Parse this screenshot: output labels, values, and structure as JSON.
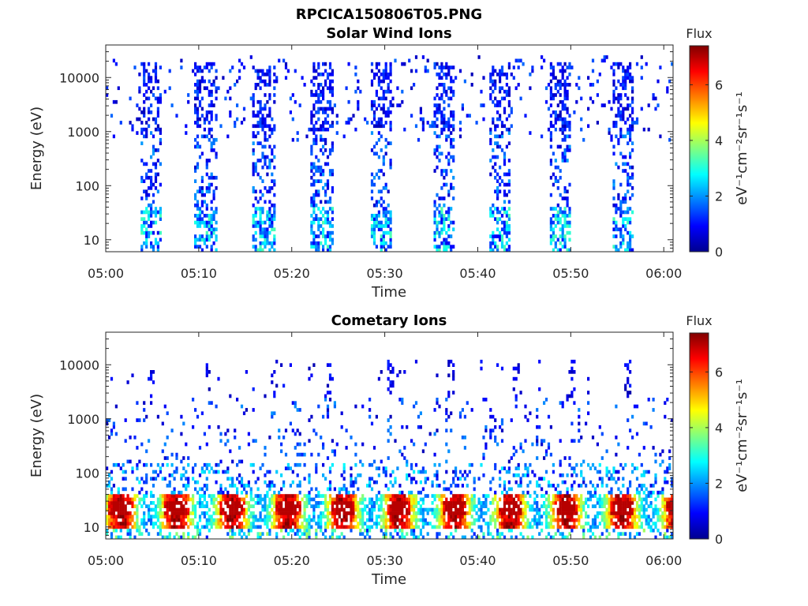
{
  "figure": {
    "title": "RPCICA150806T05.PNG"
  },
  "chart_data": [
    {
      "type": "heatmap",
      "title": "Solar Wind Ions",
      "xlabel": "Time",
      "ylabel": "Energy (eV)",
      "x_ticks": [
        "05:00",
        "05:10",
        "05:20",
        "05:30",
        "05:40",
        "05:50",
        "06:00"
      ],
      "x_range_min": [
        0,
        61
      ],
      "y_scale": "log",
      "y_ticks": [
        "10",
        "100",
        "1000",
        "10000"
      ],
      "y_range_eV": [
        6,
        40000
      ],
      "colorbar": {
        "title": "Flux",
        "label": "eV⁻¹cm⁻²sr⁻¹s⁻¹",
        "ticks": [
          "0",
          "2",
          "4",
          "6"
        ],
        "range": [
          0,
          7.4
        ],
        "colormap": "jet"
      },
      "bursts_center_min": [
        4.7,
        10.7,
        16.9,
        23.1,
        29.5,
        36.2,
        42.2,
        48.8,
        55.5
      ],
      "burst_typical_flux": 1.2,
      "background_flux": 0.9
    },
    {
      "type": "heatmap",
      "title": "Cometary Ions",
      "xlabel": "Time",
      "ylabel": "Energy (eV)",
      "x_ticks": [
        "05:00",
        "05:10",
        "05:20",
        "05:30",
        "05:40",
        "05:50",
        "06:00"
      ],
      "x_range_min": [
        0,
        61
      ],
      "y_scale": "log",
      "y_ticks": [
        "10",
        "100",
        "1000",
        "10000"
      ],
      "y_range_eV": [
        6,
        40000
      ],
      "colorbar": {
        "title": "Flux",
        "label": "eV⁻¹cm⁻²sr⁻¹s⁻¹",
        "ticks": [
          "0",
          "2",
          "4",
          "6"
        ],
        "range": [
          0,
          7.4
        ],
        "colormap": "jet"
      },
      "low_energy_band_eV": [
        10,
        40
      ],
      "peak_flux": 7,
      "spike_times_min": [
        4.5,
        11.0,
        18.0,
        24.0,
        30.5,
        37.0,
        44.0,
        50.0,
        56.0
      ]
    }
  ]
}
